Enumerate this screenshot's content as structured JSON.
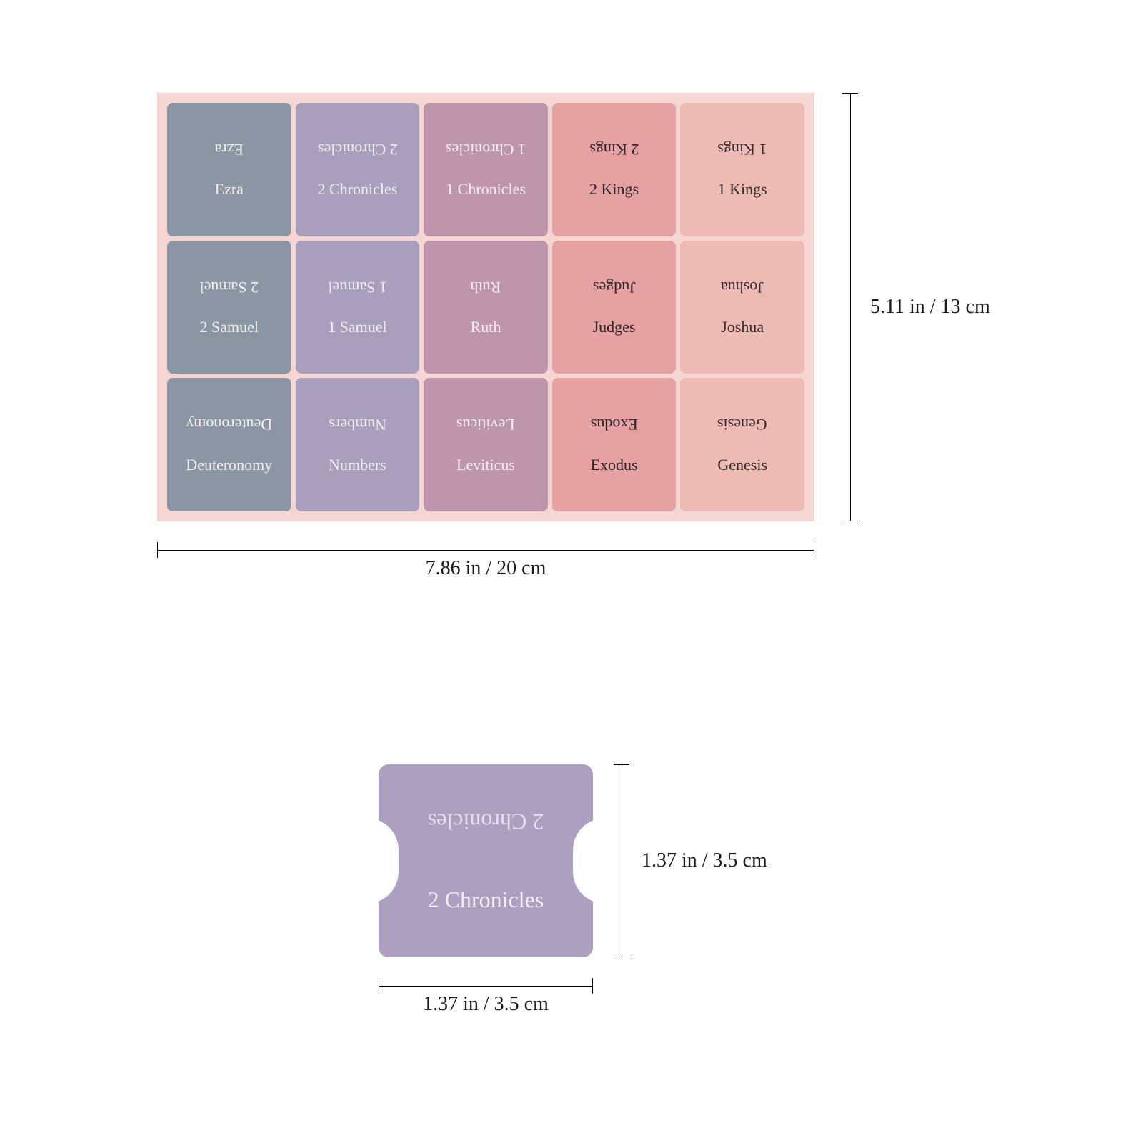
{
  "sheet": {
    "background": "#f6d6d2",
    "columns": [
      {
        "bg": "#8c95a4",
        "text": "#f0efec",
        "flip_text": "#f0efec"
      },
      {
        "bg": "#a99ebb",
        "text": "#efeef0",
        "flip_text": "#efeef0"
      },
      {
        "bg": "#bf95ac",
        "text": "#f4eef2",
        "flip_text": "#f4eef2"
      },
      {
        "bg": "#e6a1a3",
        "text": "#2e2326",
        "flip_text": "#2e2326"
      },
      {
        "bg": "#edbab4",
        "text": "#332a2a",
        "flip_text": "#332a2a"
      }
    ],
    "rows": [
      [
        "Ezra",
        "2 Chronicles",
        "1 Chronicles",
        "2 Kings",
        "1 Kings"
      ],
      [
        "2 Samuel",
        "1 Samuel",
        "Ruth",
        "Judges",
        "Joshua"
      ],
      [
        "Deuteronomy",
        "Numbers",
        "Leviticus",
        "Exodus",
        "Genesis"
      ]
    ],
    "dim_width": "7.86 in / 20 cm",
    "dim_height": "5.11 in / 13 cm"
  },
  "single": {
    "label": "2 Chronicles",
    "bg": "#ac9fbf",
    "text": "#efedf2",
    "dim_width": "1.37 in / 3.5 cm",
    "dim_height": "1.37 in / 3.5 cm"
  },
  "style": {
    "dim_color": "#1a1a1a",
    "dim_font": "Georgia, serif",
    "dim_font_size": 28
  }
}
